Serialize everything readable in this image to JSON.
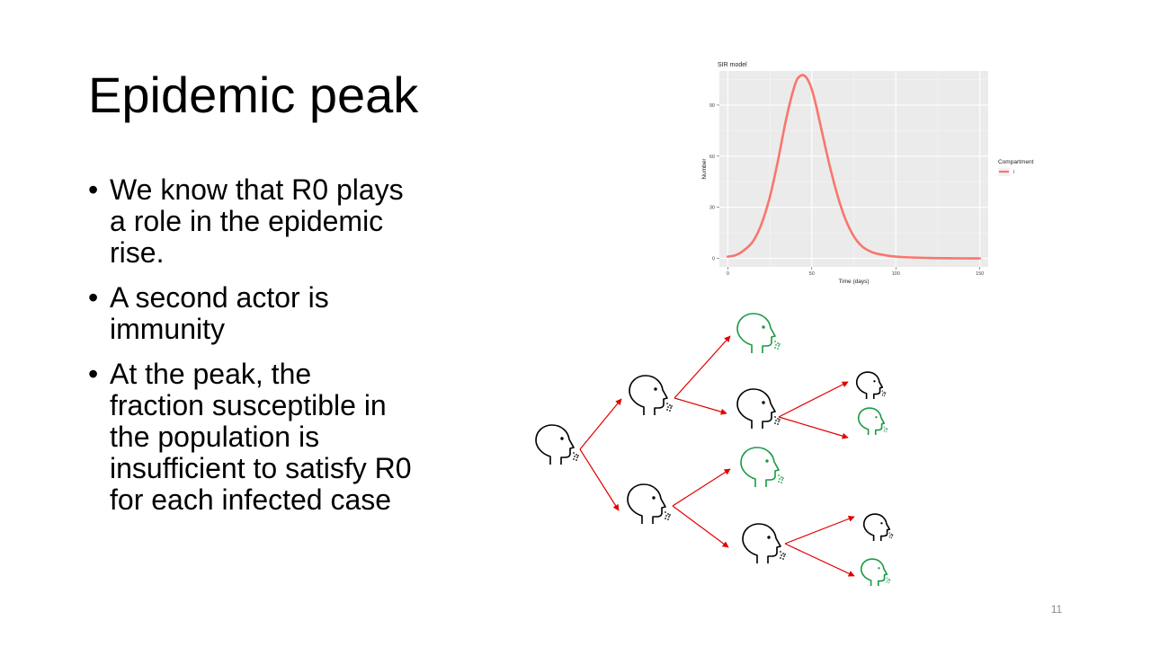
{
  "slide": {
    "title": "Epidemic peak",
    "bullets": [
      "We know that R0 plays a role in the epidemic rise.",
      "A second actor is immunity",
      "At the peak, the fraction susceptible in the population is insufficient to satisfy R0 for each infected case"
    ],
    "page_number": "11"
  },
  "chart_data": {
    "type": "line",
    "title": "SIR model",
    "xlabel": "Time (days)",
    "ylabel": "Number",
    "xlim": [
      -5,
      155
    ],
    "ylim": [
      -5,
      110
    ],
    "x_ticks": [
      0,
      50,
      100,
      150
    ],
    "x_tick_labels": [
      "0",
      "50",
      "100",
      "150"
    ],
    "y_ticks": [
      0,
      30,
      60,
      90
    ],
    "y_tick_labels": [
      "0",
      "30",
      "60",
      "90"
    ],
    "grid": true,
    "legend": {
      "title": "Compartment",
      "position": "right"
    },
    "series": [
      {
        "name": "I",
        "color": "#f8766d",
        "x": [
          0,
          5,
          10,
          15,
          20,
          25,
          30,
          35,
          40,
          43,
          46,
          49,
          52,
          55,
          60,
          65,
          70,
          75,
          80,
          85,
          90,
          100,
          110,
          120,
          130,
          140,
          150
        ],
        "y": [
          1,
          2,
          5,
          10,
          20,
          36,
          58,
          83,
          102,
          107,
          107,
          102,
          92,
          79,
          57,
          38,
          23,
          13,
          7,
          4,
          2.5,
          1,
          0.5,
          0.2,
          0.1,
          0,
          0
        ]
      }
    ]
  },
  "diagram": {
    "colors": {
      "infectious": "#000000",
      "immune": "#1a9a45",
      "arrow": "#e00000"
    }
  }
}
